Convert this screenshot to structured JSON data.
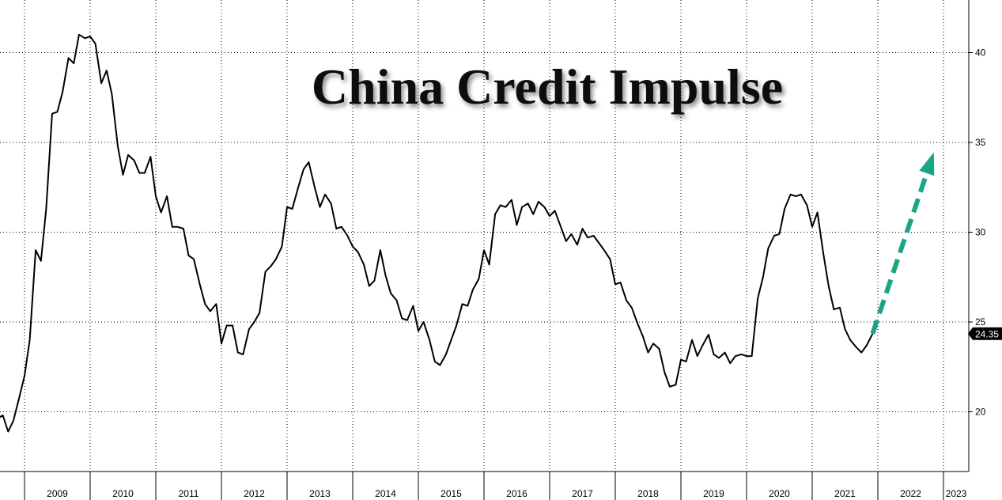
{
  "chart_data": {
    "type": "line",
    "title": "China Credit Impulse",
    "ylim": [
      17.5,
      42.5
    ],
    "yticks": [
      20,
      25,
      30,
      35,
      40
    ],
    "ytick_labels": [
      "20",
      "25",
      "30",
      "35",
      "40"
    ],
    "x_range": [
      2008.5,
      2023.2
    ],
    "year_boundaries": [
      2009,
      2010,
      2011,
      2012,
      2013,
      2014,
      2015,
      2016,
      2017,
      2018,
      2019,
      2020,
      2021,
      2022,
      2023
    ],
    "year_labels": [
      "2009",
      "2010",
      "2011",
      "2012",
      "2013",
      "2014",
      "2015",
      "2016",
      "2017",
      "2018",
      "2019",
      "2020",
      "2021",
      "2022",
      "2023"
    ],
    "series": [
      {
        "values": [
          [
            2008.5,
            20.0
          ],
          [
            2008.58,
            19.6
          ],
          [
            2008.67,
            19.8
          ],
          [
            2008.75,
            18.9
          ],
          [
            2008.83,
            19.5
          ],
          [
            2008.92,
            20.8
          ],
          [
            2009.0,
            22.0
          ],
          [
            2009.08,
            24.0
          ],
          [
            2009.17,
            29.0
          ],
          [
            2009.25,
            28.4
          ],
          [
            2009.33,
            31.3
          ],
          [
            2009.42,
            36.6
          ],
          [
            2009.5,
            36.7
          ],
          [
            2009.58,
            37.8
          ],
          [
            2009.67,
            39.7
          ],
          [
            2009.75,
            39.4
          ],
          [
            2009.83,
            41.0
          ],
          [
            2009.92,
            40.8
          ],
          [
            2010.0,
            40.9
          ],
          [
            2010.08,
            40.5
          ],
          [
            2010.17,
            38.3
          ],
          [
            2010.25,
            39.0
          ],
          [
            2010.33,
            37.7
          ],
          [
            2010.42,
            34.8
          ],
          [
            2010.5,
            33.2
          ],
          [
            2010.58,
            34.3
          ],
          [
            2010.67,
            34.0
          ],
          [
            2010.75,
            33.3
          ],
          [
            2010.83,
            33.3
          ],
          [
            2010.92,
            34.2
          ],
          [
            2011.0,
            32.0
          ],
          [
            2011.08,
            31.1
          ],
          [
            2011.17,
            32.0
          ],
          [
            2011.25,
            30.3
          ],
          [
            2011.33,
            30.3
          ],
          [
            2011.42,
            30.2
          ],
          [
            2011.5,
            28.7
          ],
          [
            2011.58,
            28.5
          ],
          [
            2011.67,
            27.1
          ],
          [
            2011.75,
            26.0
          ],
          [
            2011.83,
            25.6
          ],
          [
            2011.92,
            26.0
          ],
          [
            2012.0,
            23.8
          ],
          [
            2012.08,
            24.8
          ],
          [
            2012.17,
            24.8
          ],
          [
            2012.25,
            23.3
          ],
          [
            2012.33,
            23.2
          ],
          [
            2012.42,
            24.6
          ],
          [
            2012.5,
            25.0
          ],
          [
            2012.58,
            25.5
          ],
          [
            2012.67,
            27.8
          ],
          [
            2012.75,
            28.1
          ],
          [
            2012.83,
            28.5
          ],
          [
            2012.92,
            29.2
          ],
          [
            2013.0,
            31.4
          ],
          [
            2013.08,
            31.3
          ],
          [
            2013.17,
            32.5
          ],
          [
            2013.25,
            33.5
          ],
          [
            2013.33,
            33.9
          ],
          [
            2013.42,
            32.5
          ],
          [
            2013.5,
            31.4
          ],
          [
            2013.58,
            32.1
          ],
          [
            2013.67,
            31.6
          ],
          [
            2013.75,
            30.2
          ],
          [
            2013.83,
            30.3
          ],
          [
            2013.92,
            29.8
          ],
          [
            2014.0,
            29.2
          ],
          [
            2014.08,
            28.9
          ],
          [
            2014.17,
            28.2
          ],
          [
            2014.25,
            27.0
          ],
          [
            2014.33,
            27.3
          ],
          [
            2014.42,
            29.0
          ],
          [
            2014.5,
            27.6
          ],
          [
            2014.58,
            26.6
          ],
          [
            2014.67,
            26.2
          ],
          [
            2014.75,
            25.2
          ],
          [
            2014.83,
            25.1
          ],
          [
            2014.92,
            25.9
          ],
          [
            2015.0,
            24.5
          ],
          [
            2015.08,
            25.0
          ],
          [
            2015.17,
            24.0
          ],
          [
            2015.25,
            22.8
          ],
          [
            2015.33,
            22.6
          ],
          [
            2015.42,
            23.2
          ],
          [
            2015.5,
            24.0
          ],
          [
            2015.58,
            24.8
          ],
          [
            2015.67,
            26.0
          ],
          [
            2015.75,
            25.9
          ],
          [
            2015.83,
            26.8
          ],
          [
            2015.92,
            27.4
          ],
          [
            2016.0,
            29.0
          ],
          [
            2016.08,
            28.2
          ],
          [
            2016.17,
            31.0
          ],
          [
            2016.25,
            31.5
          ],
          [
            2016.33,
            31.4
          ],
          [
            2016.42,
            31.8
          ],
          [
            2016.5,
            30.4
          ],
          [
            2016.58,
            31.4
          ],
          [
            2016.67,
            31.6
          ],
          [
            2016.75,
            31.0
          ],
          [
            2016.83,
            31.7
          ],
          [
            2016.92,
            31.4
          ],
          [
            2017.0,
            30.9
          ],
          [
            2017.08,
            31.2
          ],
          [
            2017.17,
            30.3
          ],
          [
            2017.25,
            29.5
          ],
          [
            2017.33,
            29.9
          ],
          [
            2017.42,
            29.3
          ],
          [
            2017.5,
            30.2
          ],
          [
            2017.58,
            29.7
          ],
          [
            2017.67,
            29.8
          ],
          [
            2017.75,
            29.4
          ],
          [
            2017.83,
            29.0
          ],
          [
            2017.92,
            28.5
          ],
          [
            2018.0,
            27.1
          ],
          [
            2018.08,
            27.2
          ],
          [
            2018.17,
            26.2
          ],
          [
            2018.25,
            25.8
          ],
          [
            2018.33,
            25.0
          ],
          [
            2018.42,
            24.2
          ],
          [
            2018.5,
            23.3
          ],
          [
            2018.58,
            23.8
          ],
          [
            2018.67,
            23.5
          ],
          [
            2018.75,
            22.2
          ],
          [
            2018.83,
            21.4
          ],
          [
            2018.92,
            21.5
          ],
          [
            2019.0,
            22.9
          ],
          [
            2019.08,
            22.8
          ],
          [
            2019.17,
            24.0
          ],
          [
            2019.25,
            23.1
          ],
          [
            2019.33,
            23.7
          ],
          [
            2019.42,
            24.3
          ],
          [
            2019.5,
            23.2
          ],
          [
            2019.58,
            23.0
          ],
          [
            2019.67,
            23.3
          ],
          [
            2019.75,
            22.7
          ],
          [
            2019.83,
            23.1
          ],
          [
            2019.92,
            23.2
          ],
          [
            2020.0,
            23.1
          ],
          [
            2020.08,
            23.1
          ],
          [
            2020.17,
            26.3
          ],
          [
            2020.25,
            27.5
          ],
          [
            2020.33,
            29.1
          ],
          [
            2020.42,
            29.8
          ],
          [
            2020.5,
            29.9
          ],
          [
            2020.58,
            31.3
          ],
          [
            2020.67,
            32.1
          ],
          [
            2020.75,
            32.0
          ],
          [
            2020.83,
            32.1
          ],
          [
            2020.92,
            31.5
          ],
          [
            2021.0,
            30.3
          ],
          [
            2021.08,
            31.1
          ],
          [
            2021.17,
            28.8
          ],
          [
            2021.25,
            27.0
          ],
          [
            2021.33,
            25.7
          ],
          [
            2021.42,
            25.8
          ],
          [
            2021.5,
            24.6
          ],
          [
            2021.58,
            24.0
          ],
          [
            2021.67,
            23.6
          ],
          [
            2021.75,
            23.3
          ],
          [
            2021.83,
            23.7
          ],
          [
            2021.92,
            24.35
          ]
        ]
      }
    ],
    "last_value_label": "24.35",
    "projection_arrow": {
      "color": "#1aa586",
      "from": [
        2021.92,
        24.35
      ],
      "to": [
        2022.83,
        34.2
      ],
      "style": "dashed"
    },
    "grid": true,
    "yaxis_side": "right"
  }
}
